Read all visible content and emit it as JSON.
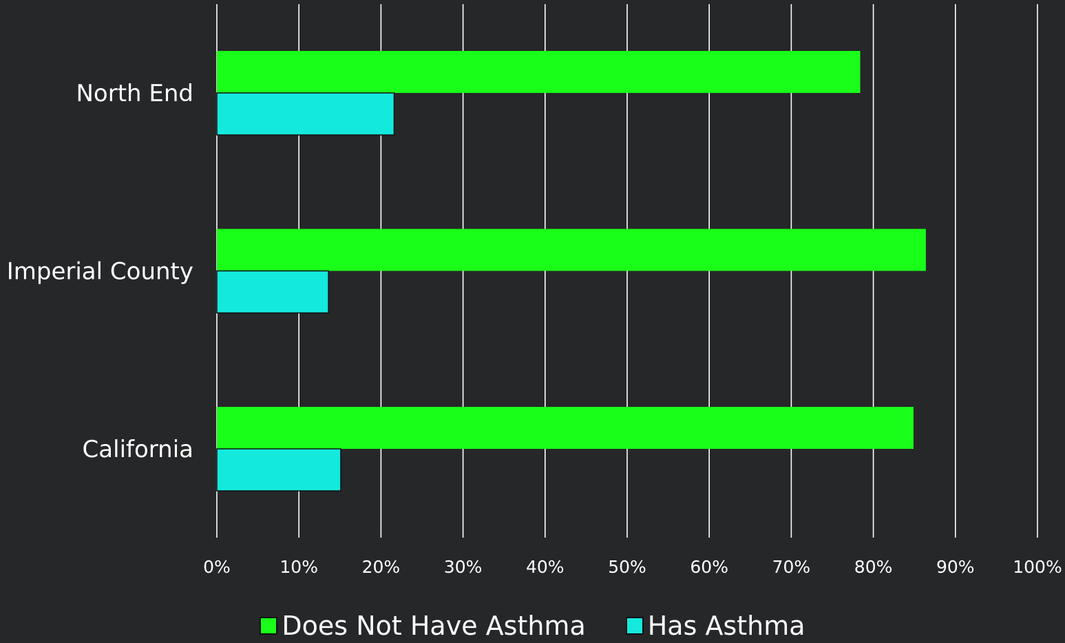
{
  "chart_data": {
    "type": "bar",
    "orientation": "horizontal",
    "categories": [
      "North End",
      "Imperial County",
      "California"
    ],
    "series": [
      {
        "name": "Does Not Have Asthma",
        "color": "#19ff19",
        "values": [
          78.4,
          86.4,
          84.9
        ]
      },
      {
        "name": "Has Asthma",
        "color": "#14e9dd",
        "values": [
          21.6,
          13.6,
          15.1
        ]
      }
    ],
    "xlim": [
      0,
      100
    ],
    "x_ticks": [
      0,
      10,
      20,
      30,
      40,
      50,
      60,
      70,
      80,
      90,
      100
    ],
    "x_tick_labels": [
      "0%",
      "10%",
      "20%",
      "30%",
      "40%",
      "50%",
      "60%",
      "70%",
      "80%",
      "90%",
      "100%"
    ],
    "grid": true,
    "legend_position": "bottom-center",
    "background": "#262729",
    "gridline_color": "#ffffff"
  }
}
